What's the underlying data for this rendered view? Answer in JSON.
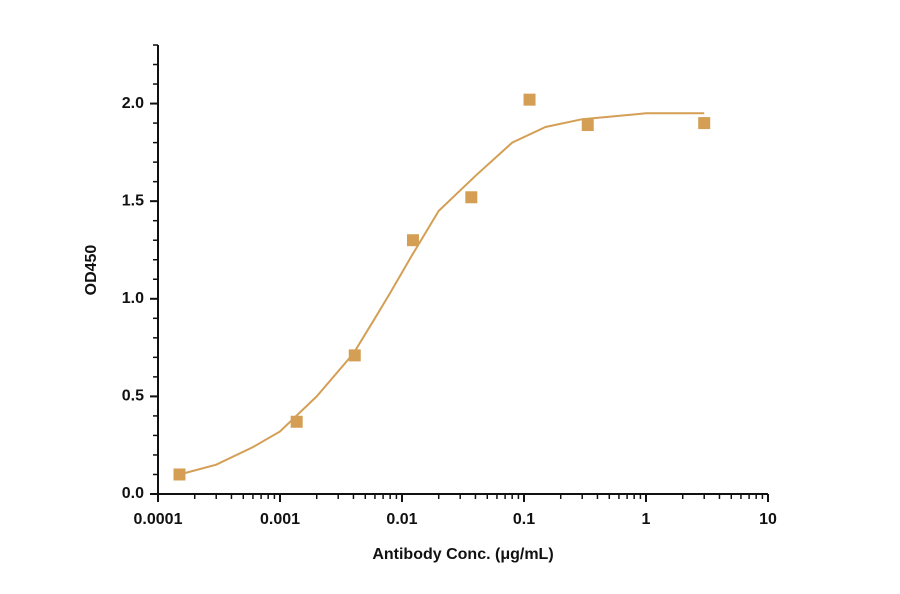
{
  "chart_data": {
    "type": "scatter",
    "x_label": "Antibody Conc. (μg/mL)",
    "y_label": "OD450",
    "log_x": true,
    "xlim": [
      0.0001,
      10
    ],
    "xticks": [
      0.0001,
      0.001,
      0.01,
      0.1,
      1,
      10
    ],
    "ylim": [
      0,
      2.3
    ],
    "yticks": [
      {
        "value": 0,
        "label": "0.0"
      },
      {
        "value": 0.5,
        "label": "0.5"
      },
      {
        "value": 1,
        "label": "1.0"
      },
      {
        "value": 1.5,
        "label": "1.5"
      },
      {
        "value": 2,
        "label": "2.0"
      }
    ],
    "color": "#d49f55",
    "x": [
      0.00015,
      0.00137,
      0.0041,
      0.0123,
      0.037,
      0.111,
      0.333,
      3
    ],
    "values": [
      0.1,
      0.37,
      0.71,
      1.3,
      1.52,
      2.02,
      1.89,
      1.9
    ],
    "fit": {
      "x": [
        0.00015,
        0.0003,
        0.0006,
        0.001,
        0.002,
        0.004,
        0.006,
        0.008,
        0.012,
        0.02,
        0.04,
        0.08,
        0.15,
        0.3,
        1,
        3
      ],
      "values": [
        0.1,
        0.15,
        0.24,
        0.32,
        0.5,
        0.72,
        0.9,
        1.03,
        1.22,
        1.45,
        1.63,
        1.8,
        1.88,
        1.92,
        1.95,
        1.95
      ]
    }
  }
}
